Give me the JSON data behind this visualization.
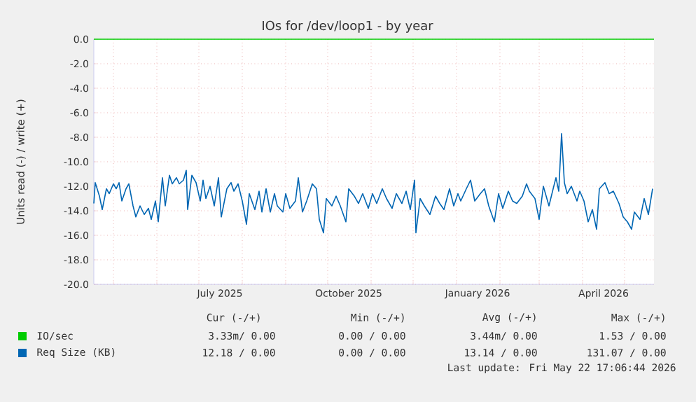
{
  "chart_data": {
    "type": "line",
    "title": "IOs for /dev/loop1 - by year",
    "ylabel": "Units read (-) / write (+)",
    "xlim": [
      "2025-04-17",
      "2026-05-22"
    ],
    "xticks": [
      {
        "value": "2025-05-01",
        "label": null
      },
      {
        "value": "2025-06-01",
        "label": null
      },
      {
        "value": "2025-07-01",
        "label": null
      },
      {
        "value": "2025-07-16",
        "label": "July 2025"
      },
      {
        "value": "2025-08-01",
        "label": null
      },
      {
        "value": "2025-09-01",
        "label": null
      },
      {
        "value": "2025-10-01",
        "label": null
      },
      {
        "value": "2025-10-16",
        "label": "October 2025"
      },
      {
        "value": "2025-11-01",
        "label": null
      },
      {
        "value": "2025-12-01",
        "label": null
      },
      {
        "value": "2026-01-01",
        "label": null
      },
      {
        "value": "2026-01-16",
        "label": "January 2026"
      },
      {
        "value": "2026-02-01",
        "label": null
      },
      {
        "value": "2026-03-01",
        "label": null
      },
      {
        "value": "2026-04-01",
        "label": null
      },
      {
        "value": "2026-04-16",
        "label": "April 2026"
      },
      {
        "value": "2026-05-01",
        "label": null
      }
    ],
    "ylim": [
      -20,
      0
    ],
    "yticks": [
      {
        "value": 0,
        "label": "0.0"
      },
      {
        "value": -2,
        "label": "-2.0"
      },
      {
        "value": -4,
        "label": "-4.0"
      },
      {
        "value": -6,
        "label": "-6.0"
      },
      {
        "value": -8,
        "label": "-8.0"
      },
      {
        "value": -10,
        "label": "-10.0"
      },
      {
        "value": -12,
        "label": "-12.0"
      },
      {
        "value": -14,
        "label": "-14.0"
      },
      {
        "value": -16,
        "label": "-16.0"
      },
      {
        "value": -18,
        "label": "-18.0"
      },
      {
        "value": -20,
        "label": "-20.0"
      }
    ],
    "grid": true,
    "legend": "bottom",
    "series": [
      {
        "name": "IO/sec",
        "color": "#00cc00",
        "x": [
          "2025-04-17",
          "2026-05-22"
        ],
        "values": [
          0,
          0
        ]
      },
      {
        "name": "Req Size (KB)",
        "color": "#0066b3",
        "x": [
          "2025-04-17",
          "2025-04-18",
          "2025-04-21",
          "2025-04-23",
          "2025-04-26",
          "2025-04-28",
          "2025-05-01",
          "2025-05-03",
          "2025-05-05",
          "2025-05-07",
          "2025-05-10",
          "2025-05-12",
          "2025-05-15",
          "2025-05-17",
          "2025-05-20",
          "2025-05-23",
          "2025-05-26",
          "2025-05-28",
          "2025-05-31",
          "2025-06-02",
          "2025-06-05",
          "2025-06-07",
          "2025-06-10",
          "2025-06-12",
          "2025-06-15",
          "2025-06-17",
          "2025-06-20",
          "2025-06-22",
          "2025-06-23",
          "2025-06-26",
          "2025-06-29",
          "2025-07-02",
          "2025-07-04",
          "2025-07-06",
          "2025-07-09",
          "2025-07-12",
          "2025-07-15",
          "2025-07-17",
          "2025-07-21",
          "2025-07-24",
          "2025-07-26",
          "2025-07-29",
          "2025-08-01",
          "2025-08-04",
          "2025-08-06",
          "2025-08-10",
          "2025-08-13",
          "2025-08-15",
          "2025-08-18",
          "2025-08-21",
          "2025-08-24",
          "2025-08-26",
          "2025-08-30",
          "2025-09-01",
          "2025-09-04",
          "2025-09-08",
          "2025-09-10",
          "2025-09-13",
          "2025-09-16",
          "2025-09-20",
          "2025-09-23",
          "2025-09-25",
          "2025-09-28",
          "2025-09-30",
          "2025-10-04",
          "2025-10-07",
          "2025-10-10",
          "2025-10-14",
          "2025-10-16",
          "2025-10-20",
          "2025-10-23",
          "2025-10-26",
          "2025-10-30",
          "2025-11-02",
          "2025-11-05",
          "2025-11-09",
          "2025-11-12",
          "2025-11-16",
          "2025-11-19",
          "2025-11-23",
          "2025-11-26",
          "2025-11-29",
          "2025-12-02",
          "2025-12-03",
          "2025-12-06",
          "2025-12-09",
          "2025-12-13",
          "2025-12-17",
          "2025-12-20",
          "2025-12-23",
          "2025-12-27",
          "2025-12-30",
          "2026-01-02",
          "2026-01-04",
          "2026-01-08",
          "2026-01-11",
          "2026-01-14",
          "2026-01-18",
          "2026-01-21",
          "2026-01-24",
          "2026-01-28",
          "2026-01-31",
          "2026-02-03",
          "2026-02-07",
          "2026-02-10",
          "2026-02-13",
          "2026-02-17",
          "2026-02-20",
          "2026-02-22",
          "2026-02-26",
          "2026-03-01",
          "2026-03-04",
          "2026-03-08",
          "2026-03-11",
          "2026-03-13",
          "2026-03-15",
          "2026-03-17",
          "2026-03-19",
          "2026-03-21",
          "2026-03-24",
          "2026-03-28",
          "2026-03-30",
          "2026-04-02",
          "2026-04-05",
          "2026-04-08",
          "2026-04-11",
          "2026-04-13",
          "2026-04-17",
          "2026-04-20",
          "2026-04-23",
          "2026-04-27",
          "2026-04-30",
          "2026-05-03",
          "2026-05-06",
          "2026-05-08",
          "2026-05-12",
          "2026-05-15",
          "2026-05-18",
          "2026-05-21"
        ],
        "values": [
          -13.4,
          -11.7,
          -12.8,
          -13.9,
          -12.2,
          -12.6,
          -11.8,
          -12.2,
          -11.7,
          -13.2,
          -12.2,
          -11.8,
          -13.6,
          -14.5,
          -13.6,
          -14.3,
          -13.8,
          -14.7,
          -13.2,
          -14.9,
          -11.3,
          -13.6,
          -11.1,
          -11.8,
          -11.3,
          -11.8,
          -11.5,
          -10.7,
          -13.9,
          -11.1,
          -11.7,
          -13.2,
          -11.5,
          -13.0,
          -12.0,
          -13.6,
          -11.3,
          -14.5,
          -12.2,
          -11.7,
          -12.4,
          -11.8,
          -13.2,
          -15.1,
          -12.6,
          -13.9,
          -12.4,
          -14.1,
          -12.2,
          -14.1,
          -12.6,
          -13.6,
          -14.1,
          -12.6,
          -13.8,
          -13.2,
          -11.3,
          -14.1,
          -13.2,
          -11.8,
          -12.2,
          -14.7,
          -15.8,
          -13.0,
          -13.6,
          -12.8,
          -13.6,
          -14.9,
          -12.2,
          -12.8,
          -13.4,
          -12.6,
          -13.8,
          -12.6,
          -13.4,
          -12.2,
          -13.0,
          -13.8,
          -12.6,
          -13.4,
          -12.4,
          -13.9,
          -11.5,
          -15.8,
          -13.0,
          -13.6,
          -14.3,
          -12.8,
          -13.4,
          -13.9,
          -12.2,
          -13.6,
          -12.6,
          -13.2,
          -12.2,
          -11.5,
          -13.2,
          -12.6,
          -12.2,
          -13.6,
          -14.9,
          -12.6,
          -13.8,
          -12.4,
          -13.2,
          -13.4,
          -12.8,
          -11.8,
          -12.4,
          -13.0,
          -14.7,
          -12.0,
          -13.6,
          -12.2,
          -11.3,
          -12.4,
          -7.7,
          -11.7,
          -12.6,
          -12.0,
          -13.2,
          -12.4,
          -13.2,
          -14.9,
          -13.9,
          -15.5,
          -12.2,
          -11.7,
          -12.6,
          -12.4,
          -13.4,
          -14.5,
          -14.9,
          -15.5,
          -14.1,
          -14.7,
          -13.0,
          -14.3,
          -12.2
        ]
      }
    ],
    "annotations": [
      "Cur (-/+)",
      "Min (-/+)",
      "Avg (-/+)",
      "Max (-/+)",
      "3.33m/ 0.00",
      "0.00 / 0.00",
      "3.44m/ 0.00",
      "1.53 / 0.00",
      "12.18 / 0.00",
      "0.00 / 0.00",
      "13.14 / 0.00",
      "131.07 / 0.00",
      "Last update: Fri May 22 17:06:44 2026"
    ]
  }
}
